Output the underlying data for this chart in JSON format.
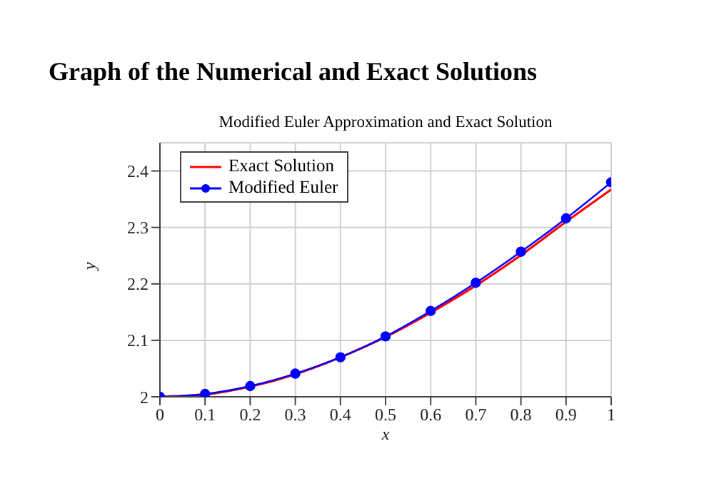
{
  "chart_data": {
    "type": "line",
    "title": "Graph of the Numerical and Exact Solutions",
    "subtitle": "Modified Euler Approximation and Exact Solution",
    "xlabel": "x",
    "ylabel": "y",
    "x": [
      0,
      0.1,
      0.2,
      0.3,
      0.4,
      0.5,
      0.6,
      0.7,
      0.8,
      0.9,
      1
    ],
    "series": [
      {
        "name": "Exact Solution",
        "color": "#ff0000",
        "marker": "none",
        "values": [
          2,
          2.004,
          2.018,
          2.04,
          2.07,
          2.106,
          2.149,
          2.197,
          2.251,
          2.31,
          2.367
        ]
      },
      {
        "name": "Modified Euler",
        "color": "#0000ff",
        "marker": "circle",
        "values": [
          2,
          2.005,
          2.019,
          2.041,
          2.07,
          2.107,
          2.152,
          2.202,
          2.257,
          2.316,
          2.38
        ]
      }
    ],
    "xlim": [
      0,
      1
    ],
    "xticks": [
      0,
      0.1,
      0.2,
      0.3,
      0.4,
      0.5,
      0.6,
      0.7,
      0.8,
      0.9,
      1
    ],
    "ylim": [
      2,
      2.45
    ],
    "yticks": [
      2,
      2.1,
      2.2,
      2.3,
      2.4
    ],
    "grid": true,
    "legend": "top left",
    "line_style": "solid"
  }
}
